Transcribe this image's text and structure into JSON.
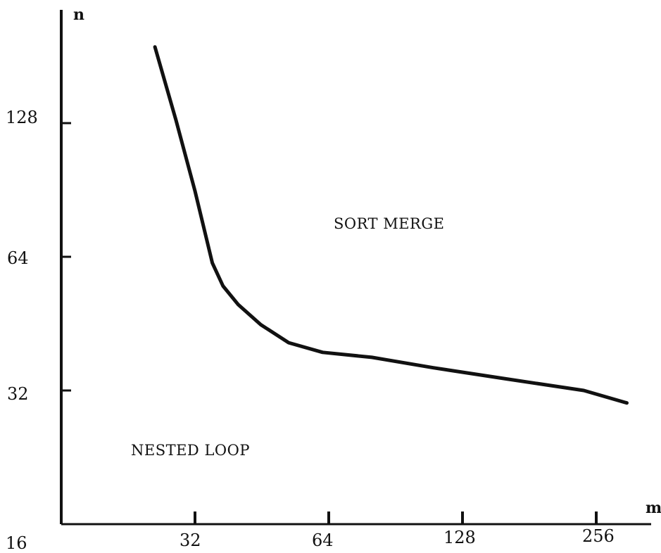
{
  "chart_data": {
    "type": "line",
    "title": "",
    "xlabel": "m",
    "ylabel": "n",
    "x_scale": "log2",
    "y_scale": "log2",
    "xlim": [
      16,
      340
    ],
    "ylim": [
      16,
      200
    ],
    "x_ticks": [
      32,
      64,
      128,
      256
    ],
    "x_tick_labels": [
      "32",
      "64",
      "128",
      "256"
    ],
    "y_ticks": [
      32,
      64,
      128
    ],
    "y_tick_labels": [
      "32",
      "64",
      "128"
    ],
    "origin_label": "16",
    "grid": false,
    "series": [
      {
        "x": [
          26,
          29,
          32,
          34,
          35,
          37,
          40,
          45,
          52,
          62,
          80,
          110,
          160,
          240,
          300
        ],
        "y": [
          190,
          130,
          90,
          70,
          62,
          55,
          50,
          45,
          41,
          39,
          38,
          36,
          34,
          32,
          30
        ]
      }
    ],
    "annotations": [
      {
        "text": "SORT MERGE",
        "x": 90,
        "y": 72
      },
      {
        "text": "NESTED LOOP",
        "x": 24,
        "y": 25
      }
    ]
  }
}
